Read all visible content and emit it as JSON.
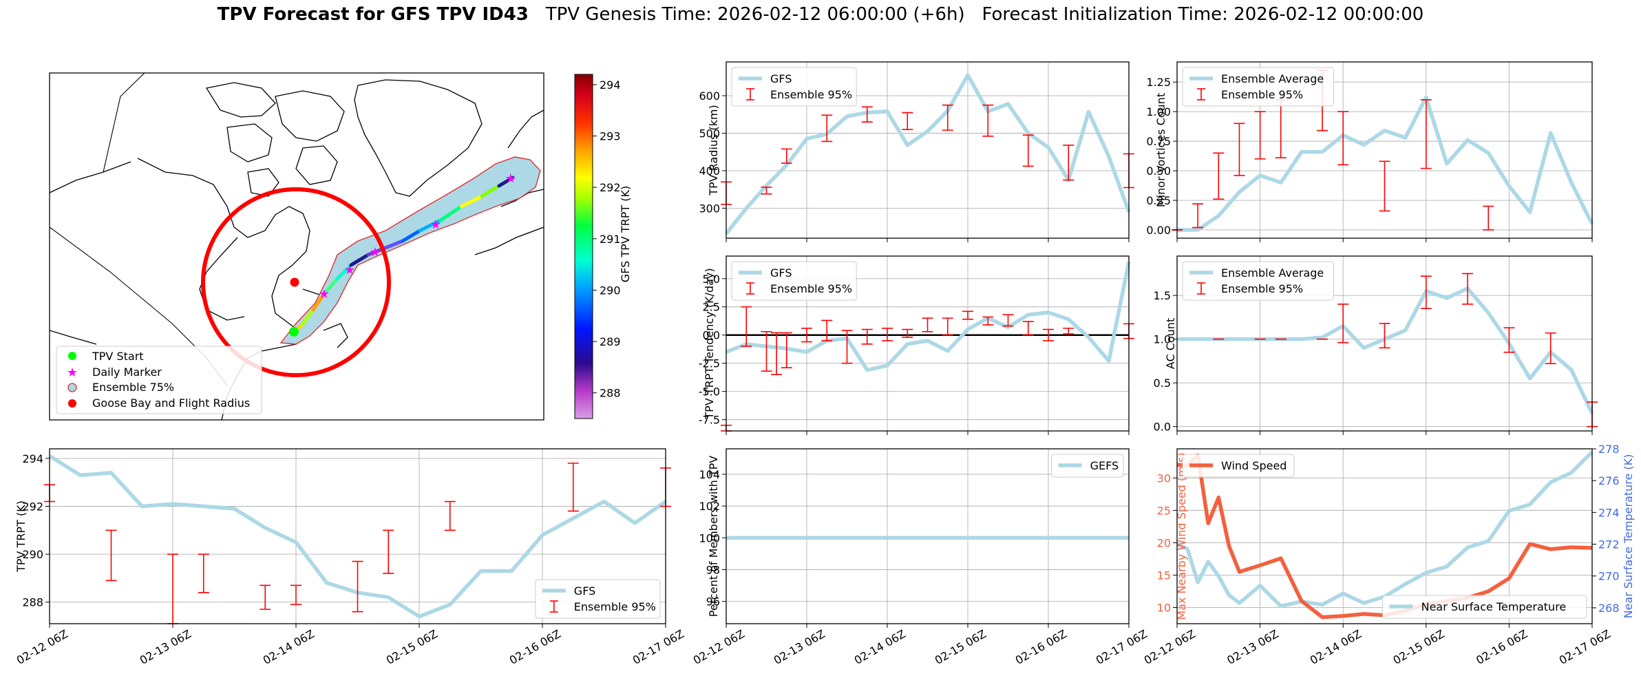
{
  "title": {
    "main": "TPV Forecast for GFS TPV ID43",
    "genesis": "TPV Genesis Time: 2026-02-12 06:00:00 (+6h)",
    "init": "Forecast Initialization Time: 2026-02-12 00:00:00"
  },
  "colors": {
    "gfs_line": "#add8e6",
    "errorbar": "#ff0000",
    "wind": "#f4603f",
    "temp_axis": "#4169e1",
    "zero_line": "#000000",
    "radius_circle": "#ff0000",
    "marker_star": "#ff00ff",
    "start_marker": "#00ff00",
    "swath_fill": "#add8e6"
  },
  "x_ticks": [
    "02-12 06Z",
    "02-13 06Z",
    "02-14 06Z",
    "02-15 06Z",
    "02-16 06Z",
    "02-17 06Z"
  ],
  "chart_data": [
    {
      "id": "map",
      "type": "map",
      "legend_placement": "lower-left",
      "legend": [
        "TPV Start",
        "Daily Marker",
        "Ensemble 75%",
        "Goose Bay and Flight Radius"
      ],
      "colorbar": {
        "label": "GFS TPV TRPT (K)",
        "range": [
          287.5,
          294.2
        ],
        "ticks": [
          288,
          289,
          290,
          291,
          292,
          293,
          294
        ],
        "colormap": "gist_ncar"
      }
    },
    {
      "id": "radius",
      "type": "line",
      "ylabel": "TPV Radius (km)",
      "ylim": [
        220,
        690
      ],
      "yticks": [
        300,
        400,
        500,
        600
      ],
      "legend_placement": "upper-left",
      "grid": true,
      "series": [
        {
          "name": "GFS",
          "x": [
            0,
            0.25,
            0.5,
            0.75,
            1,
            1.25,
            1.5,
            1.75,
            2,
            2.25,
            2.5,
            2.75,
            3,
            3.25,
            3.5,
            3.75,
            4,
            4.25,
            4.5,
            4.75,
            5
          ],
          "values": [
            232,
            300,
            360,
            415,
            485,
            498,
            545,
            555,
            558,
            468,
            505,
            560,
            655,
            558,
            578,
            500,
            462,
            375,
            557,
            438,
            290
          ]
        }
      ],
      "errorbars": {
        "name": "Ensemble 95%",
        "items": [
          [
            0,
            310,
            370
          ],
          [
            0.5,
            338,
            356
          ],
          [
            0.75,
            420,
            458
          ],
          [
            1.25,
            478,
            548
          ],
          [
            1.75,
            530,
            570
          ],
          [
            2.25,
            510,
            555
          ],
          [
            2.75,
            508,
            575
          ],
          [
            3.25,
            492,
            575
          ],
          [
            3.75,
            412,
            495
          ],
          [
            4.25,
            375,
            468
          ],
          [
            5,
            355,
            445
          ]
        ]
      }
    },
    {
      "id": "trpt_tendency",
      "type": "line",
      "ylabel": "TPV TRPT Tendency (K/day)",
      "ylim": [
        -8.5,
        7.0
      ],
      "yticks": [
        -7.5,
        -5.0,
        -2.5,
        0.0,
        2.5,
        5.0
      ],
      "zero_line": true,
      "legend_placement": "upper-left",
      "grid": true,
      "series": [
        {
          "name": "GFS",
          "x": [
            0,
            0.25,
            0.5,
            0.75,
            1,
            1.25,
            1.5,
            1.75,
            2,
            2.25,
            2.5,
            2.75,
            3,
            3.25,
            3.5,
            3.75,
            4,
            4.25,
            4.5,
            4.75,
            5
          ],
          "values": [
            -1.5,
            -0.8,
            -1.0,
            -1.2,
            -1.5,
            -0.5,
            -0.3,
            -3.1,
            -2.7,
            -0.8,
            -0.5,
            -1.4,
            0.5,
            1.5,
            0.7,
            1.8,
            2.0,
            1.4,
            -0.2,
            -2.3,
            6.5
          ]
        }
      ],
      "errorbars": {
        "name": "Ensemble 95%",
        "items": [
          [
            0,
            -8.5,
            -8.0
          ],
          [
            0.25,
            -1.0,
            2.5
          ],
          [
            0.5,
            -3.2,
            0.3
          ],
          [
            0.625,
            -3.5,
            0.2
          ],
          [
            0.75,
            -2.9,
            0.2
          ],
          [
            1,
            -0.6,
            0.6
          ],
          [
            1.25,
            -0.5,
            1.3
          ],
          [
            1.5,
            -2.5,
            0.4
          ],
          [
            1.75,
            -0.8,
            0.5
          ],
          [
            2,
            -0.5,
            0.6
          ],
          [
            2.25,
            -0.2,
            0.5
          ],
          [
            2.5,
            0.3,
            1.5
          ],
          [
            2.75,
            0.0,
            1.5
          ],
          [
            3,
            1.4,
            2.1
          ],
          [
            3.25,
            0.9,
            1.6
          ],
          [
            3.5,
            0.8,
            1.8
          ],
          [
            3.75,
            0.0,
            1.2
          ],
          [
            4,
            -0.5,
            0.5
          ],
          [
            4.25,
            0.1,
            0.6
          ],
          [
            5,
            -0.3,
            1.0
          ]
        ]
      }
    },
    {
      "id": "minor_vortices",
      "type": "line",
      "ylabel": "Minor Vortices Count",
      "ylim": [
        -0.07,
        1.42
      ],
      "yticks": [
        0.0,
        0.25,
        0.5,
        0.75,
        1.0,
        1.25
      ],
      "legend_placement": "upper-left",
      "grid": true,
      "series": [
        {
          "name": "Ensemble Average",
          "x": [
            0,
            0.25,
            0.5,
            0.75,
            1,
            1.25,
            1.5,
            1.75,
            2,
            2.25,
            2.5,
            2.75,
            3,
            3.25,
            3.5,
            3.75,
            4,
            4.25,
            4.5,
            4.75,
            5
          ],
          "values": [
            0,
            0,
            0.12,
            0.32,
            0.46,
            0.4,
            0.66,
            0.66,
            0.8,
            0.72,
            0.84,
            0.78,
            1.12,
            0.56,
            0.76,
            0.65,
            0.37,
            0.15,
            0.82,
            0.4,
            0.05
          ]
        }
      ],
      "errorbars": {
        "name": "Ensemble 95%",
        "items": [
          [
            0,
            0,
            0
          ],
          [
            0.25,
            0.02,
            0.22
          ],
          [
            0.5,
            0.26,
            0.65
          ],
          [
            0.75,
            0.46,
            0.9
          ],
          [
            1,
            0.6,
            1.0
          ],
          [
            1.25,
            0.61,
            1.1
          ],
          [
            1.75,
            0.84,
            1.35
          ],
          [
            2,
            0.55,
            1.0
          ],
          [
            2.5,
            0.16,
            0.58
          ],
          [
            3,
            0.52,
            1.1
          ],
          [
            3.75,
            0,
            0.2
          ]
        ]
      }
    },
    {
      "id": "ac_count",
      "type": "line",
      "ylabel": "AC Count",
      "ylim": [
        -0.05,
        1.95
      ],
      "yticks": [
        0.0,
        0.5,
        1.0,
        1.5
      ],
      "legend_placement": "upper-left",
      "grid": true,
      "series": [
        {
          "name": "Ensemble Average",
          "x": [
            0,
            0.25,
            0.5,
            0.75,
            1,
            1.25,
            1.5,
            1.75,
            2,
            2.25,
            2.5,
            2.75,
            3,
            3.25,
            3.5,
            3.75,
            4,
            4.25,
            4.5,
            4.75,
            5
          ],
          "values": [
            1.0,
            1.0,
            1.0,
            1.0,
            1.0,
            1.0,
            1.0,
            1.02,
            1.15,
            0.9,
            1.0,
            1.1,
            1.55,
            1.47,
            1.58,
            1.3,
            0.95,
            0.55,
            0.85,
            0.65,
            0.15
          ]
        }
      ],
      "errorbars": {
        "name": "Ensemble 95%",
        "items": [
          [
            0.5,
            1.0,
            1.0
          ],
          [
            1,
            1.0,
            1.0
          ],
          [
            1.25,
            1.0,
            1.0
          ],
          [
            1.75,
            1.0,
            1.0
          ],
          [
            2,
            0.96,
            1.4
          ],
          [
            2.5,
            0.9,
            1.18
          ],
          [
            3,
            1.35,
            1.72
          ],
          [
            3.5,
            1.4,
            1.75
          ],
          [
            4,
            0.85,
            1.13
          ],
          [
            4.5,
            0.72,
            1.07
          ],
          [
            5,
            0,
            0.28
          ]
        ]
      }
    },
    {
      "id": "trpt",
      "type": "line",
      "ylabel": "TPV TRPT (K)",
      "ylim": [
        287.1,
        294.4
      ],
      "yticks": [
        288,
        290,
        292,
        294
      ],
      "legend_placement": "lower-right",
      "grid": true,
      "series": [
        {
          "name": "GFS",
          "x": [
            0,
            0.25,
            0.5,
            0.75,
            1,
            1.25,
            1.5,
            1.75,
            2,
            2.25,
            2.5,
            2.75,
            3,
            3.25,
            3.5,
            3.75,
            4,
            4.25,
            4.5,
            4.75,
            5
          ],
          "values": [
            294.1,
            293.3,
            293.4,
            292.0,
            292.1,
            292.0,
            291.9,
            291.1,
            290.5,
            288.8,
            288.4,
            288.2,
            287.4,
            287.9,
            289.3,
            289.3,
            290.8,
            291.5,
            292.2,
            291.3,
            292.2
          ]
        }
      ],
      "errorbars": {
        "name": "Ensemble 95%",
        "items": [
          [
            0,
            292.2,
            292.9
          ],
          [
            0.5,
            288.9,
            291.0
          ],
          [
            1,
            287.1,
            290.0
          ],
          [
            1.25,
            288.4,
            290.0
          ],
          [
            1.75,
            287.7,
            288.7
          ],
          [
            2,
            287.9,
            288.7
          ],
          [
            2.5,
            287.6,
            289.7
          ],
          [
            2.75,
            289.2,
            291.0
          ],
          [
            3.25,
            291.0,
            292.2
          ],
          [
            4.25,
            291.8,
            293.8
          ],
          [
            5,
            292.0,
            293.6
          ]
        ]
      }
    },
    {
      "id": "percent_members",
      "type": "line",
      "ylabel": "Percent of Members with TPV",
      "ylim": [
        94.6,
        105.6
      ],
      "yticks": [
        96,
        98,
        100,
        102,
        104
      ],
      "legend_placement": "upper-right",
      "grid": true,
      "series": [
        {
          "name": "GEFS",
          "x": [
            0,
            5
          ],
          "values": [
            100,
            100
          ]
        }
      ]
    },
    {
      "id": "wind_temp",
      "type": "line",
      "ylabel": "Max Nearby Wind Speed (m/s)",
      "ylim": [
        7.5,
        34.5
      ],
      "yticks": [
        10,
        15,
        20,
        25,
        30
      ],
      "ylabel_right": "Near Surface Temperature (K)",
      "ylim_right": [
        267.0,
        278.0
      ],
      "yticks_right": [
        268,
        270,
        272,
        274,
        276,
        278
      ],
      "grid": true,
      "series": [
        {
          "name": "Wind Speed",
          "axis": "left",
          "legend_placement": "upper-left",
          "x": [
            0,
            0.125,
            0.25,
            0.375,
            0.5,
            0.625,
            0.75,
            1,
            1.25,
            1.5,
            1.75,
            2,
            2.25,
            2.5,
            2.75,
            3,
            3.25,
            3.5,
            3.75,
            4,
            4.25,
            4.5,
            4.75,
            5
          ],
          "values": [
            32.0,
            32.0,
            33.5,
            23.0,
            27.0,
            19.5,
            15.5,
            16.5,
            17.6,
            11.0,
            8.5,
            8.7,
            9.0,
            8.8,
            9.5,
            10.5,
            11.0,
            11.5,
            12.5,
            14.5,
            19.8,
            19.0,
            19.3,
            19.2
          ]
        },
        {
          "name": "Near Surface Temperature",
          "axis": "right",
          "legend_placement": "lower-right",
          "x": [
            0,
            0.125,
            0.25,
            0.375,
            0.5,
            0.625,
            0.75,
            1,
            1.25,
            1.5,
            1.75,
            2,
            2.25,
            2.5,
            2.75,
            3,
            3.25,
            3.5,
            3.75,
            4,
            4.25,
            4.5,
            4.75,
            5
          ],
          "values": [
            272.0,
            271.7,
            269.6,
            270.9,
            270.0,
            268.8,
            268.3,
            269.4,
            268.1,
            268.4,
            268.2,
            268.9,
            268.3,
            268.7,
            269.5,
            270.2,
            270.6,
            271.8,
            272.2,
            274.1,
            274.5,
            275.9,
            276.5,
            277.8
          ]
        }
      ]
    }
  ]
}
